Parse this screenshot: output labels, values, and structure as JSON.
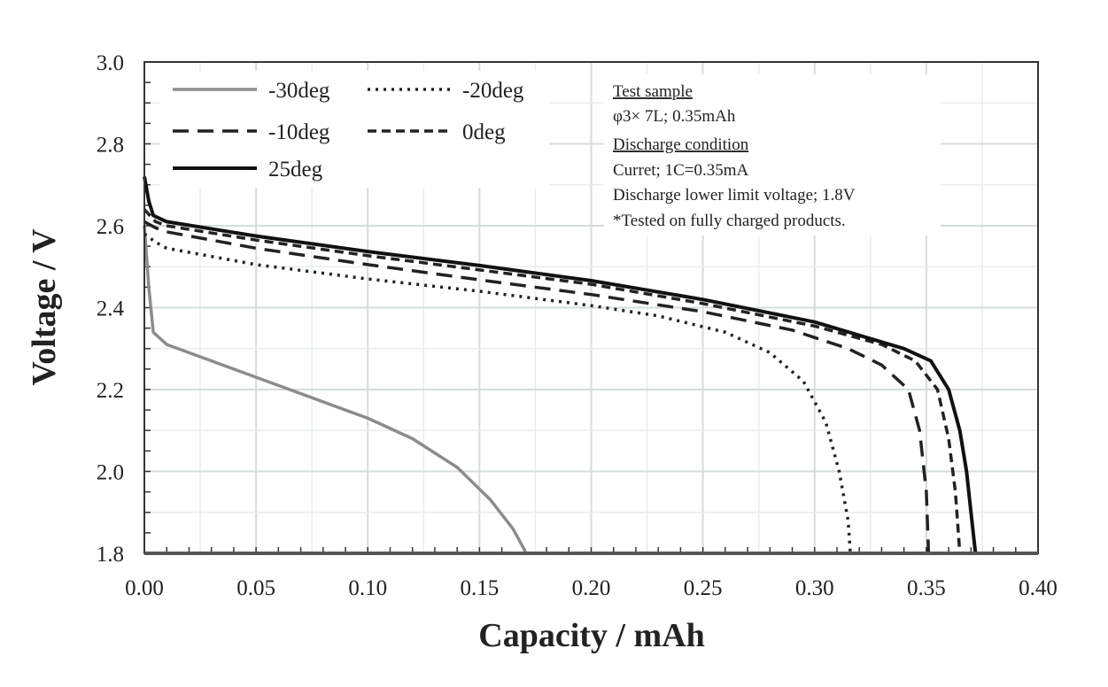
{
  "chart_data": {
    "type": "line",
    "xlabel": "Capacity  / mAh",
    "ylabel": "Voltage / V",
    "xlim": [
      0,
      0.4
    ],
    "ylim": [
      1.8,
      3.0
    ],
    "xticks": [
      "0.00",
      "0.05",
      "0.10",
      "0.15",
      "0.20",
      "0.25",
      "0.30",
      "0.35",
      "0.40"
    ],
    "yticks": [
      "1.8",
      "2.0",
      "2.2",
      "2.4",
      "2.6",
      "2.8",
      "3.0"
    ],
    "grid": true,
    "legend_position": "top-left",
    "series": [
      {
        "name": "-30deg",
        "style": "solid",
        "color": "#8c8c8c",
        "x": [
          0,
          0.002,
          0.004,
          0.01,
          0.03,
          0.05,
          0.08,
          0.1,
          0.12,
          0.14,
          0.155,
          0.165,
          0.171
        ],
        "y": [
          2.6,
          2.45,
          2.34,
          2.31,
          2.27,
          2.23,
          2.17,
          2.13,
          2.08,
          2.01,
          1.93,
          1.86,
          1.8
        ]
      },
      {
        "name": "-20deg",
        "style": "dotted",
        "color": "#222222",
        "x": [
          0,
          0.005,
          0.01,
          0.05,
          0.1,
          0.15,
          0.2,
          0.23,
          0.26,
          0.28,
          0.295,
          0.305,
          0.311,
          0.315,
          0.316
        ],
        "y": [
          2.58,
          2.56,
          2.545,
          2.505,
          2.47,
          2.44,
          2.405,
          2.38,
          2.34,
          2.29,
          2.22,
          2.12,
          2.0,
          1.88,
          1.8
        ]
      },
      {
        "name": "-10deg",
        "style": "long-dash",
        "color": "#222222",
        "x": [
          0,
          0.005,
          0.01,
          0.05,
          0.1,
          0.15,
          0.2,
          0.25,
          0.29,
          0.315,
          0.33,
          0.342,
          0.347,
          0.35,
          0.351
        ],
        "y": [
          2.61,
          2.595,
          2.585,
          2.545,
          2.505,
          2.468,
          2.432,
          2.39,
          2.345,
          2.3,
          2.26,
          2.2,
          2.1,
          1.95,
          1.8
        ]
      },
      {
        "name": "0deg",
        "style": "short-dash",
        "color": "#222222",
        "x": [
          0,
          0.005,
          0.01,
          0.05,
          0.1,
          0.15,
          0.2,
          0.25,
          0.3,
          0.33,
          0.345,
          0.355,
          0.36,
          0.363,
          0.365
        ],
        "y": [
          2.64,
          2.61,
          2.6,
          2.565,
          2.527,
          2.492,
          2.457,
          2.41,
          2.355,
          2.31,
          2.27,
          2.2,
          2.08,
          1.95,
          1.8
        ]
      },
      {
        "name": "25deg",
        "style": "solid",
        "color": "#111111",
        "x": [
          0,
          0.002,
          0.004,
          0.01,
          0.05,
          0.1,
          0.15,
          0.2,
          0.25,
          0.3,
          0.34,
          0.352,
          0.36,
          0.365,
          0.368,
          0.37,
          0.372
        ],
        "y": [
          2.72,
          2.66,
          2.625,
          2.61,
          2.575,
          2.537,
          2.503,
          2.466,
          2.42,
          2.365,
          2.3,
          2.27,
          2.2,
          2.1,
          2.0,
          1.9,
          1.8
        ]
      }
    ],
    "annotations": {
      "heading1": "Test sample",
      "line1": "φ3× 7L; 0.35mAh",
      "heading2": "Discharge condition",
      "line2": "Curret; 1C=0.35mA",
      "line3": "Discharge lower limit  voltage; 1.8V",
      "line4": "*Tested on fully  charged products."
    }
  }
}
